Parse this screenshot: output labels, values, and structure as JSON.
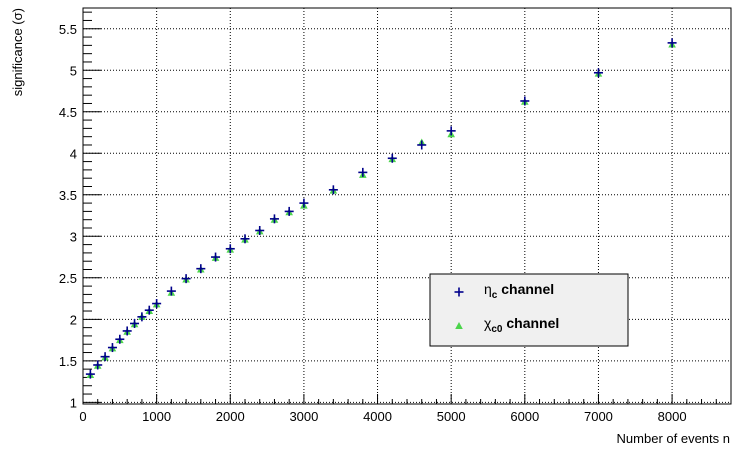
{
  "chart_data": {
    "type": "scatter",
    "xlabel": "Number of events n",
    "ylabel": "significance (σ)",
    "xlim": [
      0,
      8800
    ],
    "ylim": [
      0.98,
      5.75
    ],
    "xticks": [
      0,
      1000,
      2000,
      3000,
      4000,
      5000,
      6000,
      7000,
      8000
    ],
    "yticks": [
      1,
      1.5,
      2,
      2.5,
      3,
      3.5,
      4,
      4.5,
      5,
      5.5
    ],
    "xtick_labels": [
      "0",
      "1000",
      "2000",
      "3000",
      "4000",
      "5000",
      "6000",
      "7000",
      "8000"
    ],
    "ytick_labels": [
      "1",
      "1.5",
      "2",
      "2.5",
      "3",
      "3.5",
      "4",
      "4.5",
      "5",
      "5.5"
    ],
    "grid": true,
    "legend_position": "lower-right",
    "series": [
      {
        "name": "ηc channel",
        "legend_main": "η",
        "legend_sub": "c",
        "legend_rest": " channel",
        "marker": "cross",
        "color": "#00008b",
        "x": [
          100,
          200,
          300,
          400,
          500,
          600,
          700,
          800,
          900,
          1000,
          1200,
          1400,
          1600,
          1800,
          2000,
          2200,
          2400,
          2600,
          2800,
          3000,
          3400,
          3800,
          4200,
          4600,
          5000,
          6000,
          7000,
          8000
        ],
        "y": [
          1.34,
          1.45,
          1.55,
          1.66,
          1.76,
          1.86,
          1.95,
          2.03,
          2.11,
          2.19,
          2.34,
          2.49,
          2.61,
          2.75,
          2.85,
          2.97,
          3.07,
          3.21,
          3.3,
          3.4,
          3.56,
          3.77,
          3.94,
          4.1,
          4.27,
          4.63,
          4.97,
          5.33
        ]
      },
      {
        "name": "χc0 channel",
        "legend_main": "χ",
        "legend_sub": "c0",
        "legend_rest": " channel",
        "marker": "triangle",
        "color": "#4cd44c",
        "x": [
          100,
          200,
          300,
          400,
          500,
          600,
          700,
          800,
          900,
          1000,
          1200,
          1400,
          1600,
          1800,
          2000,
          2200,
          2400,
          2600,
          2800,
          3000,
          3400,
          3800,
          4200,
          4600,
          5000,
          6000,
          7000,
          8000
        ],
        "y": [
          1.33,
          1.44,
          1.54,
          1.65,
          1.75,
          1.85,
          1.94,
          2.03,
          2.1,
          2.18,
          2.32,
          2.48,
          2.6,
          2.74,
          2.84,
          2.96,
          3.06,
          3.2,
          3.29,
          3.37,
          3.55,
          3.74,
          3.93,
          4.13,
          4.23,
          4.62,
          4.96,
          5.31
        ]
      }
    ]
  }
}
